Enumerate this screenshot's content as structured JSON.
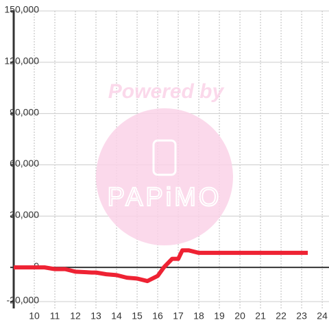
{
  "chart_data": {
    "type": "line",
    "x": [
      9,
      10.5,
      11,
      11.5,
      12,
      12.8,
      13,
      13.5,
      14,
      14.5,
      15,
      15.5,
      16,
      16.3,
      16.7,
      17,
      17.2,
      17.5,
      18,
      19,
      20,
      21,
      22,
      23.3
    ],
    "series": [
      {
        "color": "#ee2233",
        "values": [
          0,
          0,
          -1000,
          -1000,
          -2500,
          -3000,
          -3000,
          -4000,
          -4500,
          -6000,
          -6500,
          -8000,
          -5000,
          0,
          5000,
          5000,
          10000,
          10000,
          8500,
          8500,
          8500,
          8500,
          8500,
          8500
        ]
      }
    ],
    "xlim": [
      9,
      24.33
    ],
    "xticks": [
      10,
      11,
      12,
      13,
      14,
      15,
      16,
      17,
      18,
      19,
      20,
      21,
      22,
      23,
      24
    ],
    "ylim": [
      -24000,
      150000
    ],
    "yticks": [
      {
        "value": -20000,
        "label": "-20,000"
      },
      0,
      {
        "value": 30000,
        "label": "30,000"
      },
      {
        "value": 60000,
        "label": "60,000"
      },
      {
        "value": 90000,
        "label": "90,000"
      },
      {
        "value": 120000,
        "label": "120,000"
      },
      {
        "value": 150000,
        "label": "150,000"
      }
    ],
    "grid": true,
    "watermark": {
      "top": "Powered by",
      "brand": "PAPiMO"
    }
  }
}
